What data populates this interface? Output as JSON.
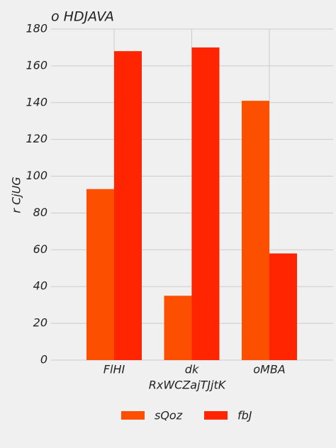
{
  "chart_data": {
    "type": "bar",
    "title": "o HDJAVA",
    "xlabel": "RxWCZajTJjtK",
    "ylabel": "r CjUG",
    "categories": [
      "FlHI",
      "dk",
      "oMBA"
    ],
    "series": [
      {
        "name": "sQoz",
        "color": "#fc4f00",
        "values": [
          93,
          35,
          141
        ]
      },
      {
        "name": "fbJ",
        "color": "#ff2500",
        "values": [
          168,
          170,
          58
        ]
      }
    ],
    "ylim": [
      0,
      180
    ],
    "yticks": [
      0,
      20,
      40,
      60,
      80,
      100,
      120,
      140,
      160,
      180
    ],
    "grid": true,
    "legend": "bottom"
  }
}
